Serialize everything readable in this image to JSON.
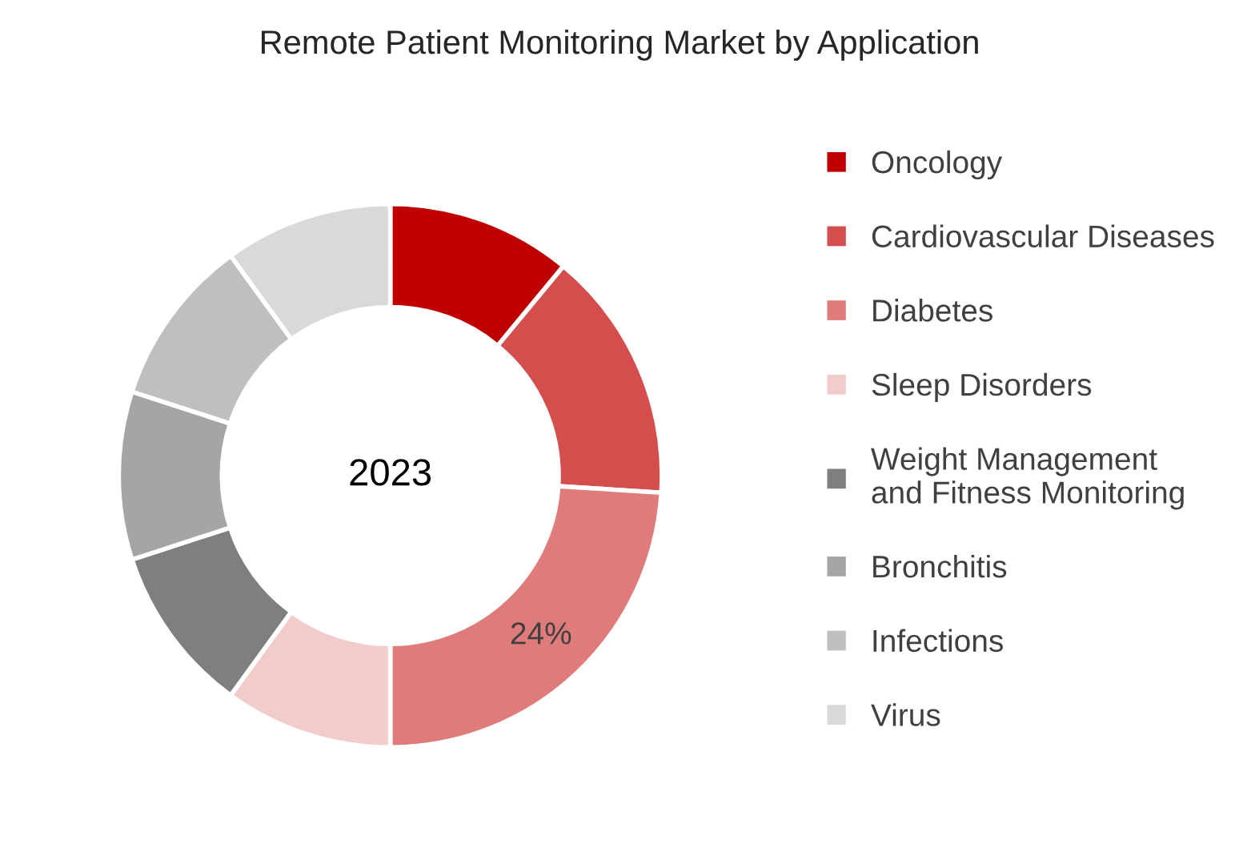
{
  "chart_data": {
    "type": "donut",
    "title": "Remote Patient Monitoring Market by Application",
    "categories": [
      "Oncology",
      "Cardiovascular Diseases",
      "Diabetes",
      "Sleep Disorders",
      "Weight Management\nand Fitness Monitoring",
      "Bronchitis",
      "Infections",
      "Virus"
    ],
    "values": [
      11,
      15,
      24,
      10,
      10,
      10,
      10,
      10
    ],
    "colors": [
      "#c00000",
      "#d54e4e",
      "#e07b7b",
      "#f2cbcb",
      "#7f7f7f",
      "#a5a5a5",
      "#bfbfbf",
      "#d9d9d9"
    ],
    "value_labels": [
      null,
      null,
      "24%",
      null,
      null,
      null,
      null,
      null
    ],
    "annotations": [
      "2023"
    ],
    "legend": "right"
  }
}
